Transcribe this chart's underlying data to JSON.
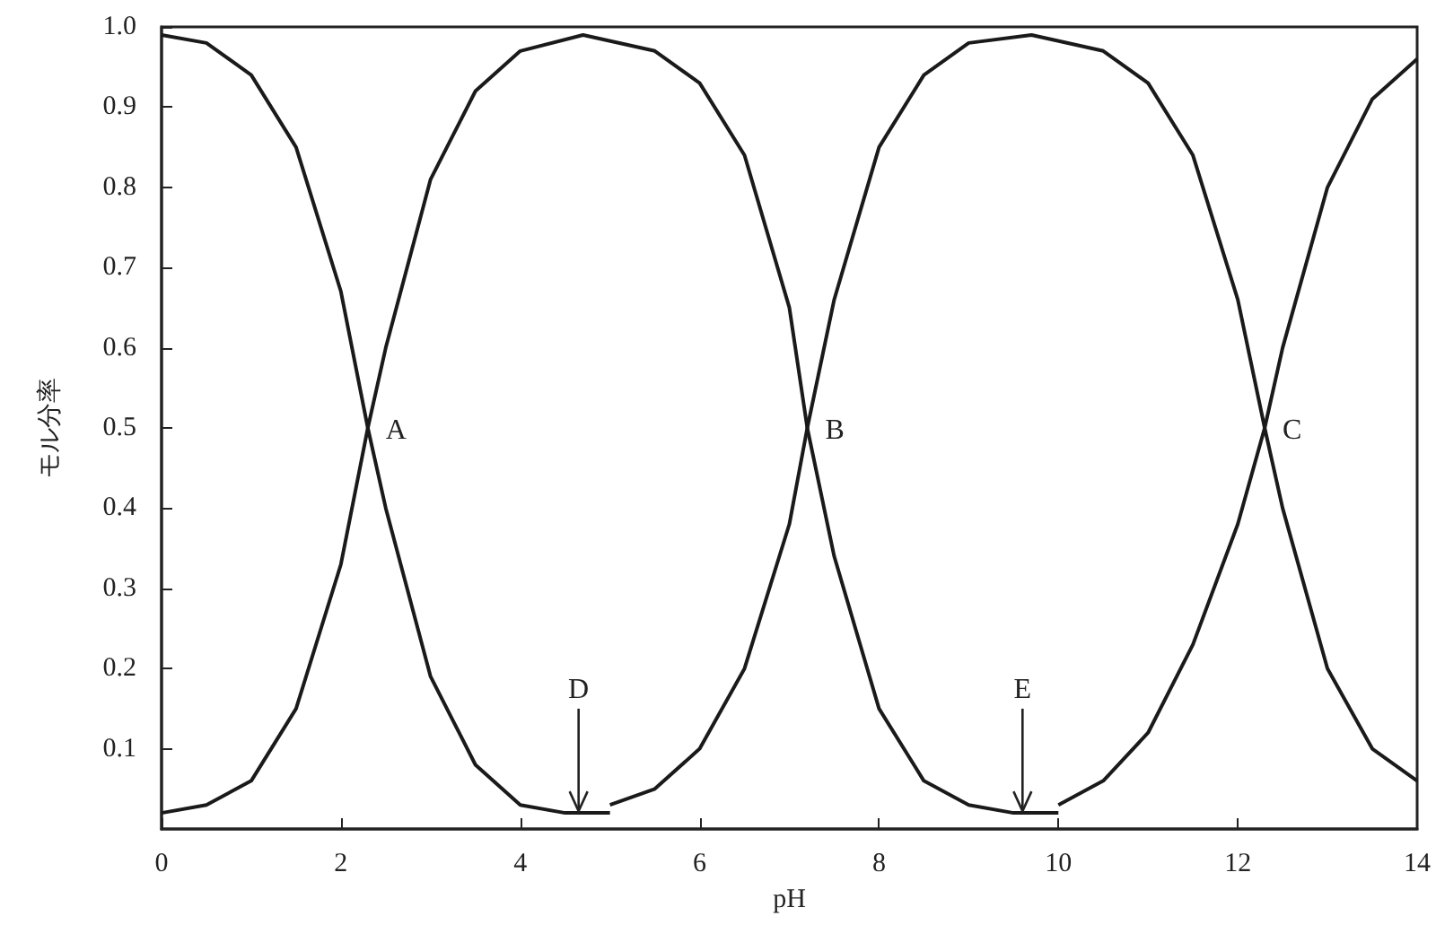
{
  "chart_data": {
    "type": "line",
    "xlabel": "pH",
    "ylabel": "モル分率",
    "xlim": [
      0,
      14
    ],
    "xticks": [
      0,
      2,
      4,
      6,
      8,
      10,
      12,
      14
    ],
    "ylim": [
      0,
      1
    ],
    "yticks": [
      0.1,
      0.2,
      0.3,
      0.4,
      0.5,
      0.6,
      0.7,
      0.8,
      0.9,
      {
        "value": 1,
        "label": "1.0"
      }
    ],
    "grid": false,
    "marker": "none",
    "line_style": "solid",
    "series": [
      {
        "color": "#1a1a1a",
        "x": [
          0,
          0.5,
          1,
          1.5,
          2,
          2.3,
          2.5,
          3,
          3.5,
          4,
          4.5,
          5
        ],
        "values": [
          0.99,
          0.98,
          0.94,
          0.85,
          0.67,
          0.5,
          0.4,
          0.19,
          0.08,
          0.03,
          0.02,
          0.02
        ]
      },
      {
        "color": "#1a1a1a",
        "x": [
          0,
          0.5,
          1,
          1.5,
          2,
          2.3,
          2.5,
          3,
          3.5,
          4,
          4.7,
          5.5,
          6,
          6.5,
          7,
          7.2,
          7.5,
          8,
          8.5,
          9,
          9.5,
          10
        ],
        "values": [
          0.02,
          0.03,
          0.06,
          0.15,
          0.33,
          0.5,
          0.6,
          0.81,
          0.92,
          0.97,
          0.99,
          0.97,
          0.93,
          0.84,
          0.65,
          0.5,
          0.34,
          0.15,
          0.06,
          0.03,
          0.02,
          0.02
        ]
      },
      {
        "color": "#1a1a1a",
        "x": [
          5,
          5.5,
          6,
          6.5,
          7,
          7.2,
          7.5,
          8,
          8.5,
          9,
          9.7,
          10.5,
          11,
          11.5,
          12,
          12.3,
          12.5,
          13,
          13.5,
          14
        ],
        "values": [
          0.03,
          0.05,
          0.1,
          0.2,
          0.38,
          0.5,
          0.66,
          0.85,
          0.94,
          0.98,
          0.99,
          0.97,
          0.93,
          0.84,
          0.66,
          0.5,
          0.4,
          0.2,
          0.1,
          0.06
        ]
      },
      {
        "color": "#1a1a1a",
        "x": [
          10,
          10.5,
          11,
          11.5,
          12,
          12.3,
          12.5,
          13,
          13.5,
          14
        ],
        "values": [
          0.03,
          0.06,
          0.12,
          0.23,
          0.38,
          0.5,
          0.6,
          0.8,
          0.91,
          0.96
        ]
      }
    ],
    "annotations": [
      {
        "text": "A",
        "x": 2.3,
        "y": 0.5
      },
      {
        "text": "B",
        "x": 7.2,
        "y": 0.5
      },
      {
        "text": "C",
        "x": 12.3,
        "y": 0.5
      },
      {
        "text": "D",
        "x": 4.65,
        "y": 0.02
      },
      {
        "text": "E",
        "x": 9.6,
        "y": 0.02
      }
    ]
  }
}
